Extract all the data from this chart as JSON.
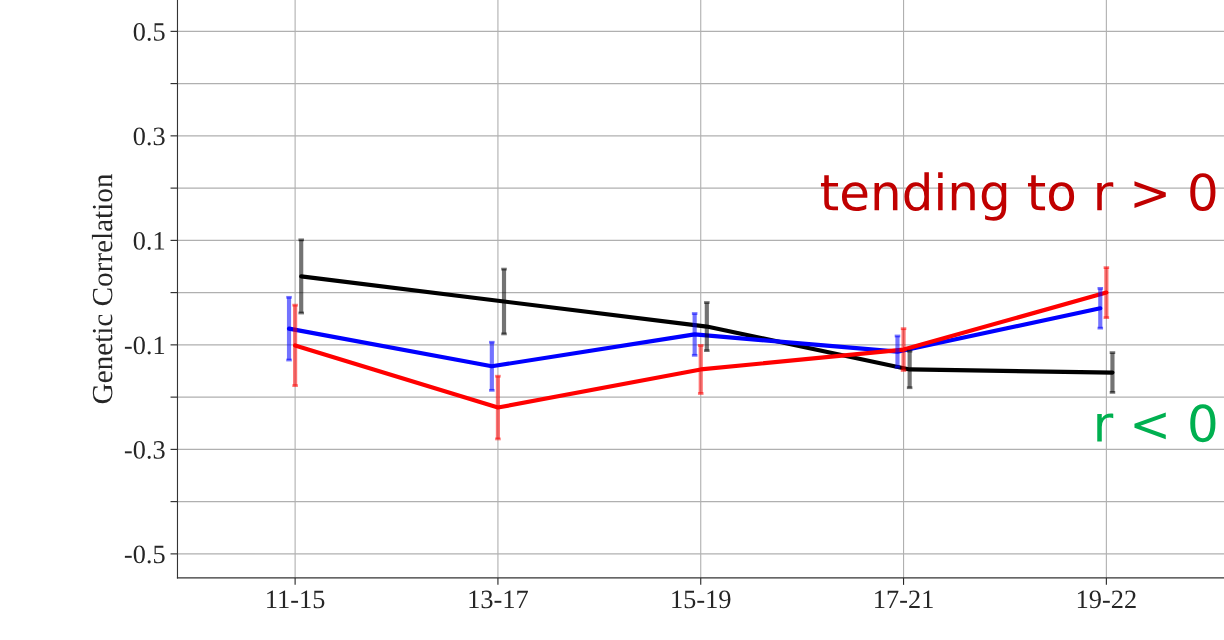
{
  "chart_data": {
    "type": "line",
    "ylabel": "Genetic Correlation",
    "categories": [
      "11-15",
      "13-17",
      "15-19",
      "17-21",
      "19-22"
    ],
    "series": [
      {
        "color": "#000000",
        "values": [
          0.031,
          -0.017,
          -0.065,
          -0.147,
          -0.153
        ],
        "errors": [
          0.07,
          0.062,
          0.046,
          0.035,
          0.038
        ]
      },
      {
        "color": "#0000ff",
        "values": [
          -0.069,
          -0.141,
          -0.08,
          -0.113,
          -0.03
        ],
        "errors": [
          0.06,
          0.046,
          0.04,
          0.03,
          0.038
        ]
      },
      {
        "color": "#ff0000",
        "values": [
          -0.101,
          -0.22,
          -0.147,
          -0.109,
          0.0
        ],
        "errors": [
          0.077,
          0.06,
          0.046,
          0.04,
          0.048
        ]
      }
    ],
    "ylim": [
      -0.546,
      0.56
    ],
    "yticks": [
      -0.5,
      {
        "value": -0.4,
        "label": null
      },
      -0.3,
      {
        "value": -0.2,
        "label": null
      },
      -0.1,
      {
        "value": 0.0,
        "label": null
      },
      0.1,
      {
        "value": 0.2,
        "label": null
      },
      0.3,
      {
        "value": 0.4,
        "label": null
      },
      0.5
    ],
    "grid": true,
    "marker": "none",
    "line_style": "solid",
    "annotations": [
      "tending to r > 0",
      "r < 0"
    ]
  }
}
